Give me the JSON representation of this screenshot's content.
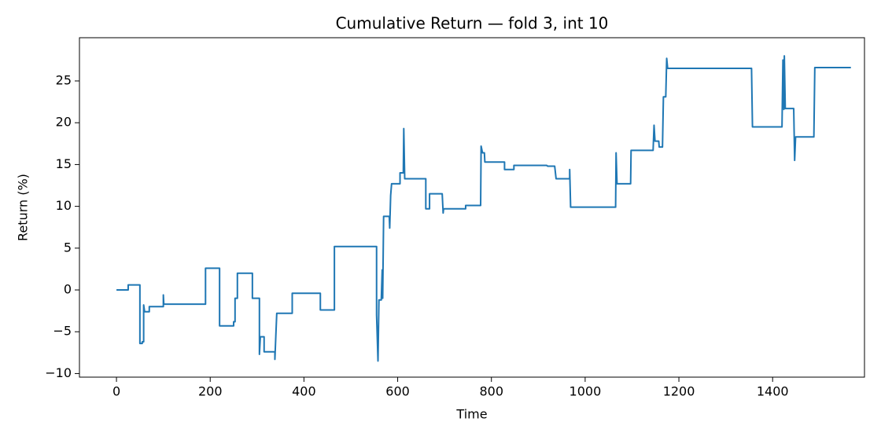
{
  "chart_data": {
    "type": "line",
    "title": "Cumulative Return — fold 3, int 10",
    "xlabel": "Time",
    "ylabel": "Return (%)",
    "xlim": [
      -79,
      1596
    ],
    "ylim": [
      -10.43,
      30.17
    ],
    "xticks": [
      0,
      200,
      400,
      600,
      800,
      1000,
      1200,
      1400
    ],
    "yticks": [
      {
        "value": -10,
        "label": "−10"
      },
      {
        "value": -5,
        "label": "−5"
      },
      0,
      5,
      10,
      15,
      20,
      25
    ],
    "grid": false,
    "series": [
      {
        "color": "#1f77b4",
        "x": [
          0,
          25,
          25,
          50,
          50,
          55,
          55,
          58,
          58,
          60,
          70,
          70,
          100,
          100,
          101,
          190,
          190,
          220,
          220,
          250,
          250,
          253,
          253,
          258,
          258,
          290,
          290,
          305,
          305,
          307,
          315,
          315,
          338,
          338,
          340,
          342,
          375,
          375,
          435,
          435,
          465,
          465,
          555,
          555,
          558,
          560,
          565,
          567,
          568,
          570,
          582,
          583,
          585,
          587,
          605,
          605,
          612,
          613,
          615,
          660,
          660,
          668,
          668,
          695,
          697,
          698,
          745,
          745,
          777,
          778,
          781,
          785,
          786,
          828,
          828,
          848,
          848,
          918,
          920,
          935,
          938,
          967,
          967,
          969,
          1065,
          1066,
          1068,
          1097,
          1098,
          1145,
          1147,
          1149,
          1157,
          1158,
          1165,
          1167,
          1172,
          1174,
          1176,
          1355,
          1357,
          1420,
          1422,
          1424,
          1425,
          1427,
          1445,
          1447,
          1449,
          1488,
          1490,
          1567
        ],
        "values": [
          0,
          0,
          0.6,
          0.6,
          -6.4,
          -6.4,
          -6.2,
          -6.2,
          -1.8,
          -2.6,
          -2.6,
          -2,
          -2,
          -0.6,
          -1.7,
          -1.7,
          2.6,
          2.6,
          -4.3,
          -4.3,
          -3.8,
          -3.8,
          -1,
          -1,
          2,
          2,
          -1,
          -1,
          -7.7,
          -5.6,
          -5.6,
          -7.4,
          -7.4,
          -8.3,
          -5.5,
          -2.8,
          -2.8,
          -0.4,
          -0.4,
          -2.4,
          -2.4,
          5.2,
          5.2,
          -3,
          -8.5,
          -1.2,
          -1.2,
          2.4,
          -1,
          8.8,
          8.8,
          7.4,
          11.3,
          12.7,
          12.7,
          14,
          14,
          19.3,
          13.3,
          13.3,
          9.7,
          9.7,
          11.5,
          11.5,
          9.2,
          9.7,
          9.7,
          10.1,
          10.1,
          17.2,
          16.4,
          16.4,
          15.3,
          15.3,
          14.4,
          14.4,
          14.9,
          14.9,
          14.8,
          14.8,
          13.3,
          13.3,
          14.4,
          9.9,
          9.9,
          16.4,
          12.7,
          12.7,
          16.7,
          16.7,
          19.7,
          17.8,
          17.8,
          17.1,
          17.1,
          23.1,
          23.1,
          27.7,
          26.5,
          26.5,
          19.5,
          19.5,
          27.5,
          21.6,
          28,
          21.7,
          21.7,
          15.5,
          18.3,
          18.3,
          26.6,
          26.6
        ]
      }
    ]
  }
}
